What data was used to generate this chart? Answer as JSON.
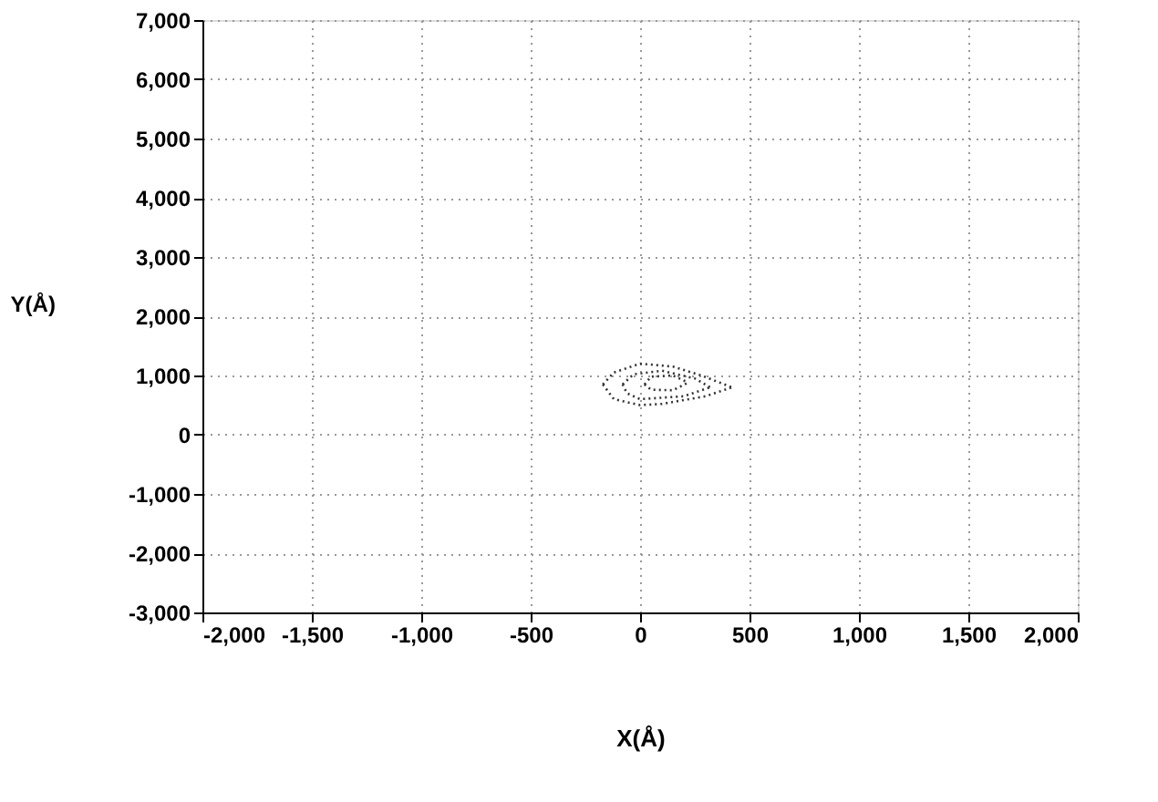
{
  "chart_data": {
    "type": "line",
    "xlabel": "X(Å)",
    "ylabel": "Y(Å)",
    "xlim": [
      -2000,
      2000
    ],
    "xticks": [
      {
        "value": -2000,
        "label": "-2,000"
      },
      {
        "value": -1500,
        "label": "-1,500"
      },
      {
        "value": -1000,
        "label": "-1,000"
      },
      -500,
      0,
      500,
      {
        "value": 1000,
        "label": "1,000"
      },
      {
        "value": 1500,
        "label": "1,500"
      },
      {
        "value": 2000,
        "label": "2,000"
      }
    ],
    "ylim": [
      -3000,
      7000
    ],
    "yticks": [
      {
        "value": -3000,
        "label": "-3,000"
      },
      {
        "value": -2000,
        "label": "-2,000"
      },
      {
        "value": -1000,
        "label": "-1,000"
      },
      0,
      {
        "value": 1000,
        "label": "1,000"
      },
      {
        "value": 2000,
        "label": "2,000"
      },
      {
        "value": 3000,
        "label": "3,000"
      },
      {
        "value": 4000,
        "label": "4,000"
      },
      {
        "value": 5000,
        "label": "5,000"
      },
      {
        "value": 6000,
        "label": "6,000"
      },
      {
        "value": 7000,
        "label": "7,000"
      }
    ],
    "grid": true,
    "line_style": "dotted",
    "marker": "none",
    "series": [
      {
        "color": "#333333",
        "x": [
          -170,
          -120,
          0,
          150,
          280,
          420
        ],
        "values": [
          850,
          1050,
          1200,
          1150,
          1000,
          800
        ]
      },
      {
        "color": "#333333",
        "x": [
          -170,
          -120,
          0,
          100,
          300,
          420
        ],
        "values": [
          850,
          600,
          500,
          520,
          650,
          800
        ]
      },
      {
        "color": "#333333",
        "x": [
          -80,
          -30,
          100,
          250,
          320
        ],
        "values": [
          850,
          1020,
          1080,
          950,
          800
        ]
      },
      {
        "color": "#333333",
        "x": [
          -80,
          -60,
          0,
          200,
          320
        ],
        "values": [
          850,
          700,
          600,
          650,
          800
        ]
      },
      {
        "color": "#333333",
        "x": [
          20,
          50,
          150,
          220
        ],
        "values": [
          850,
          980,
          1000,
          880
        ]
      },
      {
        "color": "#333333",
        "x": [
          20,
          50,
          150,
          220
        ],
        "values": [
          850,
          760,
          750,
          880
        ]
      }
    ]
  }
}
